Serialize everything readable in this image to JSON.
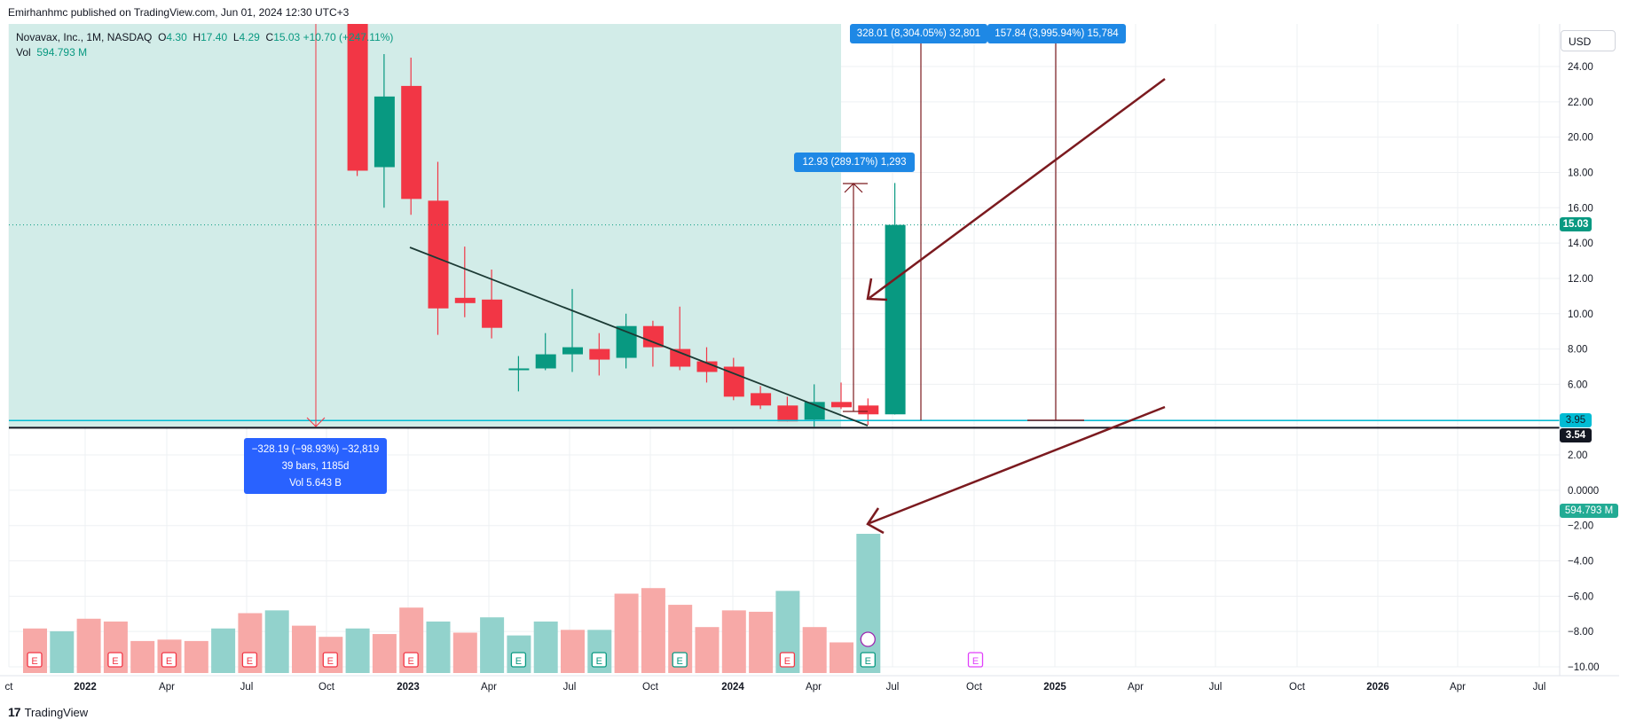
{
  "header": {
    "published_by": "Emirhanhmc published on TradingView.com, Jun 01, 2024 12:30 UTC+3"
  },
  "legend": {
    "symbol": "Novavax, Inc., 1M, NASDAQ",
    "open_label": "O",
    "open": "4.30",
    "high_label": "H",
    "high": "17.40",
    "low_label": "L",
    "low": "4.29",
    "close_label": "C",
    "close": "15.03",
    "change": "+10.70 (+247.11%)",
    "vol_label": "Vol",
    "vol": "594.793 M"
  },
  "currency": "USD",
  "price_tags": {
    "last": "15.03",
    "line1": "3.95",
    "line2": "3.54",
    "volume": "594.793 M"
  },
  "measurements": {
    "drop_line1": "−328.19 (−98.93%) −32,819",
    "drop_line2": "39 bars, 1185d",
    "drop_line3": "Vol 5.643 B",
    "rise_small": "12.93 (289.17%) 1,293",
    "rise_big1": "328.01 (8,304.05%) 32,801",
    "rise_big2": "157.84 (3,995.94%) 15,784"
  },
  "footer": {
    "brand": "TradingView"
  },
  "colors": {
    "up": "#089981",
    "down": "#f23645",
    "vol_up": "#92d2cc",
    "vol_down": "#f7a9a7",
    "shade": "#d2ece8",
    "drawing": "#7b1a1f",
    "h_line": "#00bcd4",
    "measure_blue": "#2962ff",
    "label_blue": "#1e88e5"
  },
  "chart_data": {
    "type": "candlestick",
    "title": "Novavax, Inc., 1M, NASDAQ",
    "y_axis_ticks": [
      "24.00",
      "22.00",
      "20.00",
      "18.00",
      "16.00",
      "14.00",
      "12.00",
      "10.00",
      "8.00",
      "6.00",
      "4.00",
      "2.00",
      "0.0000",
      "−2.00",
      "−4.00",
      "−6.00",
      "−8.00",
      "−10.00"
    ],
    "x_axis_ticks": [
      "ct",
      "2022",
      "Apr",
      "Jul",
      "Oct",
      "2023",
      "Apr",
      "Jul",
      "Oct",
      "2024",
      "Apr",
      "Jul",
      "Oct",
      "2025",
      "Apr",
      "Jul",
      "Oct",
      "2026",
      "Apr",
      "Jul"
    ],
    "x_axis_bold": [
      "2022",
      "2023",
      "2024",
      "2025",
      "2026"
    ],
    "candles": [
      {
        "t": "2022-09",
        "o": 45.0,
        "h": 45.0,
        "l": 17.8,
        "c": 18.1
      },
      {
        "t": "2022-10",
        "o": 18.3,
        "h": 24.7,
        "l": 16.0,
        "c": 22.3
      },
      {
        "t": "2022-11",
        "o": 22.9,
        "h": 24.5,
        "l": 15.6,
        "c": 16.5
      },
      {
        "t": "2022-12",
        "o": 16.4,
        "h": 18.6,
        "l": 8.8,
        "c": 10.3
      },
      {
        "t": "2023-01",
        "o": 10.9,
        "h": 13.8,
        "l": 9.8,
        "c": 10.6
      },
      {
        "t": "2023-02",
        "o": 10.8,
        "h": 12.5,
        "l": 8.6,
        "c": 9.2
      },
      {
        "t": "2023-03",
        "o": 6.9,
        "h": 7.6,
        "l": 5.6,
        "c": 6.9
      },
      {
        "t": "2023-04",
        "o": 6.9,
        "h": 8.9,
        "l": 6.8,
        "c": 7.7
      },
      {
        "t": "2023-05",
        "o": 7.7,
        "h": 11.4,
        "l": 6.7,
        "c": 8.1
      },
      {
        "t": "2023-06",
        "o": 8.0,
        "h": 8.9,
        "l": 6.5,
        "c": 7.4
      },
      {
        "t": "2023-07",
        "o": 7.5,
        "h": 10.0,
        "l": 6.9,
        "c": 9.3
      },
      {
        "t": "2023-08",
        "o": 9.3,
        "h": 9.6,
        "l": 7.0,
        "c": 8.1
      },
      {
        "t": "2023-09",
        "o": 8.0,
        "h": 10.4,
        "l": 6.8,
        "c": 7.0
      },
      {
        "t": "2023-10",
        "o": 7.3,
        "h": 8.1,
        "l": 6.1,
        "c": 6.7
      },
      {
        "t": "2023-11",
        "o": 7.0,
        "h": 7.5,
        "l": 5.1,
        "c": 5.3
      },
      {
        "t": "2023-12",
        "o": 5.5,
        "h": 5.9,
        "l": 4.6,
        "c": 4.8
      },
      {
        "t": "2024-01",
        "o": 4.8,
        "h": 5.3,
        "l": 3.9,
        "c": 3.9
      },
      {
        "t": "2024-02",
        "o": 4.0,
        "h": 6.0,
        "l": 3.6,
        "c": 5.0
      },
      {
        "t": "2024-03",
        "o": 5.0,
        "h": 6.1,
        "l": 4.6,
        "c": 4.7
      },
      {
        "t": "2024-04",
        "o": 4.8,
        "h": 5.2,
        "l": 3.7,
        "c": 4.3
      },
      {
        "t": "2024-05",
        "o": 4.3,
        "h": 17.4,
        "l": 4.29,
        "c": 15.03
      }
    ],
    "volume": [
      {
        "t": "2021-09",
        "v": 0.32,
        "up": false
      },
      {
        "t": "2021-10",
        "v": 0.3,
        "up": true
      },
      {
        "t": "2021-11",
        "v": 0.39,
        "up": false
      },
      {
        "t": "2021-12",
        "v": 0.37,
        "up": false
      },
      {
        "t": "2022-01",
        "v": 0.23,
        "up": false
      },
      {
        "t": "2022-02",
        "v": 0.24,
        "up": false
      },
      {
        "t": "2022-03",
        "v": 0.23,
        "up": false
      },
      {
        "t": "2022-04",
        "v": 0.32,
        "up": true
      },
      {
        "t": "2022-05",
        "v": 0.43,
        "up": false
      },
      {
        "t": "2022-06",
        "v": 0.45,
        "up": true
      },
      {
        "t": "2022-07",
        "v": 0.34,
        "up": false
      },
      {
        "t": "2022-08",
        "v": 0.26,
        "up": false
      },
      {
        "t": "2022-09",
        "v": 0.32,
        "up": true
      },
      {
        "t": "2022-10",
        "v": 0.28,
        "up": false
      },
      {
        "t": "2022-11",
        "v": 0.47,
        "up": false
      },
      {
        "t": "2022-12",
        "v": 0.37,
        "up": true
      },
      {
        "t": "2023-01",
        "v": 0.29,
        "up": false
      },
      {
        "t": "2023-02",
        "v": 0.4,
        "up": true
      },
      {
        "t": "2023-03",
        "v": 0.27,
        "up": true
      },
      {
        "t": "2023-04",
        "v": 0.37,
        "up": true
      },
      {
        "t": "2023-05",
        "v": 0.31,
        "up": false
      },
      {
        "t": "2023-06",
        "v": 0.31,
        "up": true
      },
      {
        "t": "2023-07",
        "v": 0.57,
        "up": false
      },
      {
        "t": "2023-08",
        "v": 0.61,
        "up": false
      },
      {
        "t": "2023-09",
        "v": 0.49,
        "up": false
      },
      {
        "t": "2023-10",
        "v": 0.33,
        "up": false
      },
      {
        "t": "2023-11",
        "v": 0.45,
        "up": false
      },
      {
        "t": "2023-12",
        "v": 0.44,
        "up": false
      },
      {
        "t": "2024-01",
        "v": 0.59,
        "up": true
      },
      {
        "t": "2024-02",
        "v": 0.33,
        "up": false
      },
      {
        "t": "2024-03",
        "v": 0.22,
        "up": false
      },
      {
        "t": "2024-04",
        "v": 1.0,
        "up": true
      }
    ],
    "horizontal_lines": [
      3.95,
      3.54
    ],
    "last_price": 15.03,
    "grid": true,
    "earnings_markers": [
      "2021-09",
      "2021-12",
      "2022-02",
      "2022-05",
      "2022-08",
      "2022-11",
      "2023-03",
      "2023-06",
      "2023-09",
      "2024-01",
      "2024-04",
      "2024-08"
    ]
  }
}
